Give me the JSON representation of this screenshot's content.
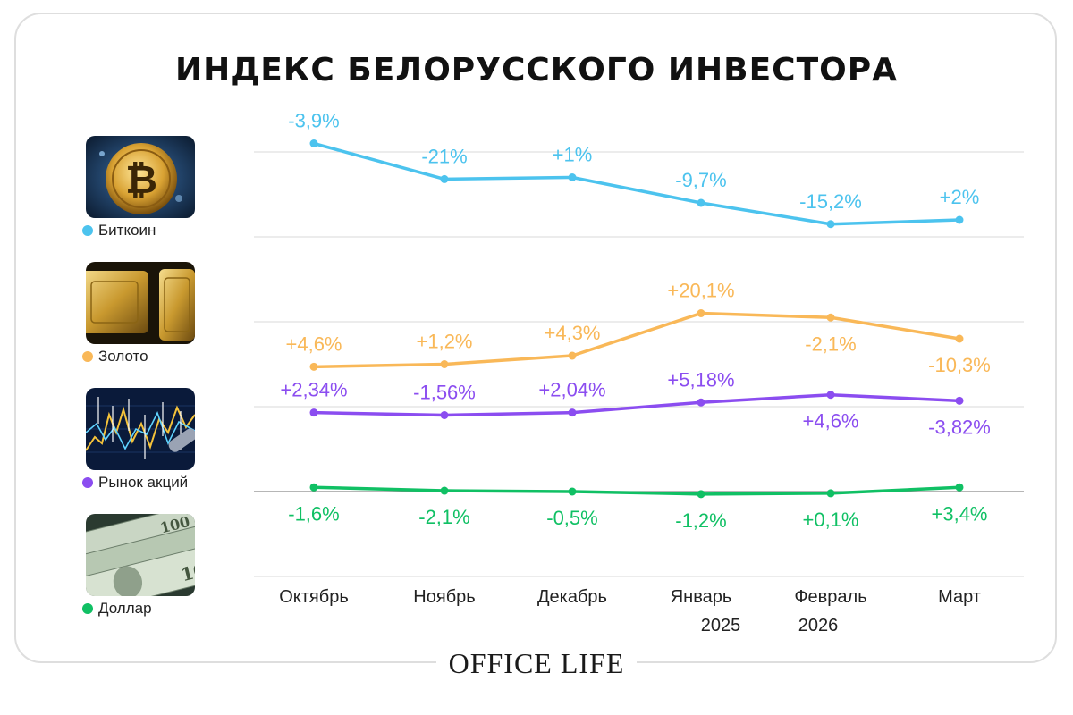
{
  "header": {
    "title": "ИНДЕКС БЕЛОРУССКОГО ИНВЕСТОРА"
  },
  "legend": [
    {
      "label": "Биткоин",
      "color": "#4cc3ee",
      "icon": "bitcoin-icon"
    },
    {
      "label": "Золото",
      "color": "#f9b858",
      "icon": "gold-bars-icon"
    },
    {
      "label": "Рынок акций",
      "color": "#8b4df0",
      "icon": "stock-chart-icon"
    },
    {
      "label": "Доллар",
      "color": "#10c064",
      "icon": "dollar-bills-icon"
    }
  ],
  "footer": {
    "brand": "OFFICE LIFE"
  },
  "chart_data": {
    "type": "line",
    "title": "ИНДЕКС БЕЛОРУССКОГО ИНВЕСТОРА",
    "categories": [
      "Октябрь",
      "Ноябрь",
      "Декабрь",
      "Январь",
      "Февраль",
      "Март"
    ],
    "year_labels": [
      {
        "text": "2025",
        "under": "Январь"
      },
      {
        "text": "2026",
        "under": "Февраль"
      }
    ],
    "grid": true,
    "ylim": [
      0,
      5
    ],
    "series": [
      {
        "name": "Биткоин",
        "color": "#4cc3ee",
        "values": [
          4.1,
          3.68,
          3.7,
          3.4,
          3.15,
          3.2
        ],
        "labels": [
          "-3,9%",
          "-21%",
          "+1%",
          "-9,7%",
          "-15,2%",
          "+2%"
        ],
        "label_pos": [
          "above",
          "above",
          "above",
          "above",
          "above",
          "above"
        ]
      },
      {
        "name": "Золото",
        "color": "#f9b858",
        "values": [
          1.47,
          1.5,
          1.6,
          2.1,
          2.05,
          1.8
        ],
        "labels": [
          "+4,6%",
          "+1,2%",
          "+4,3%",
          "+20,1%",
          "-2,1%",
          "-10,3%"
        ],
        "label_pos": [
          "above",
          "above",
          "above",
          "above",
          "below",
          "below"
        ]
      },
      {
        "name": "Рынок акций",
        "color": "#8b4df0",
        "values": [
          0.93,
          0.9,
          0.93,
          1.05,
          1.14,
          1.07
        ],
        "labels": [
          "+2,34%",
          "-1,56%",
          "+2,04%",
          "+5,18%",
          "+4,6%",
          "-3,82%"
        ],
        "label_pos": [
          "above",
          "above",
          "above",
          "above",
          "below",
          "below"
        ]
      },
      {
        "name": "Доллар",
        "color": "#10c064",
        "values": [
          0.05,
          0.01,
          0.0,
          -0.03,
          -0.02,
          0.05
        ],
        "labels": [
          "-1,6%",
          "-2,1%",
          "-0,5%",
          "-1,2%",
          "+0,1%",
          "+3,4%"
        ],
        "label_pos": [
          "below",
          "below",
          "below",
          "below",
          "below",
          "below"
        ]
      }
    ]
  }
}
